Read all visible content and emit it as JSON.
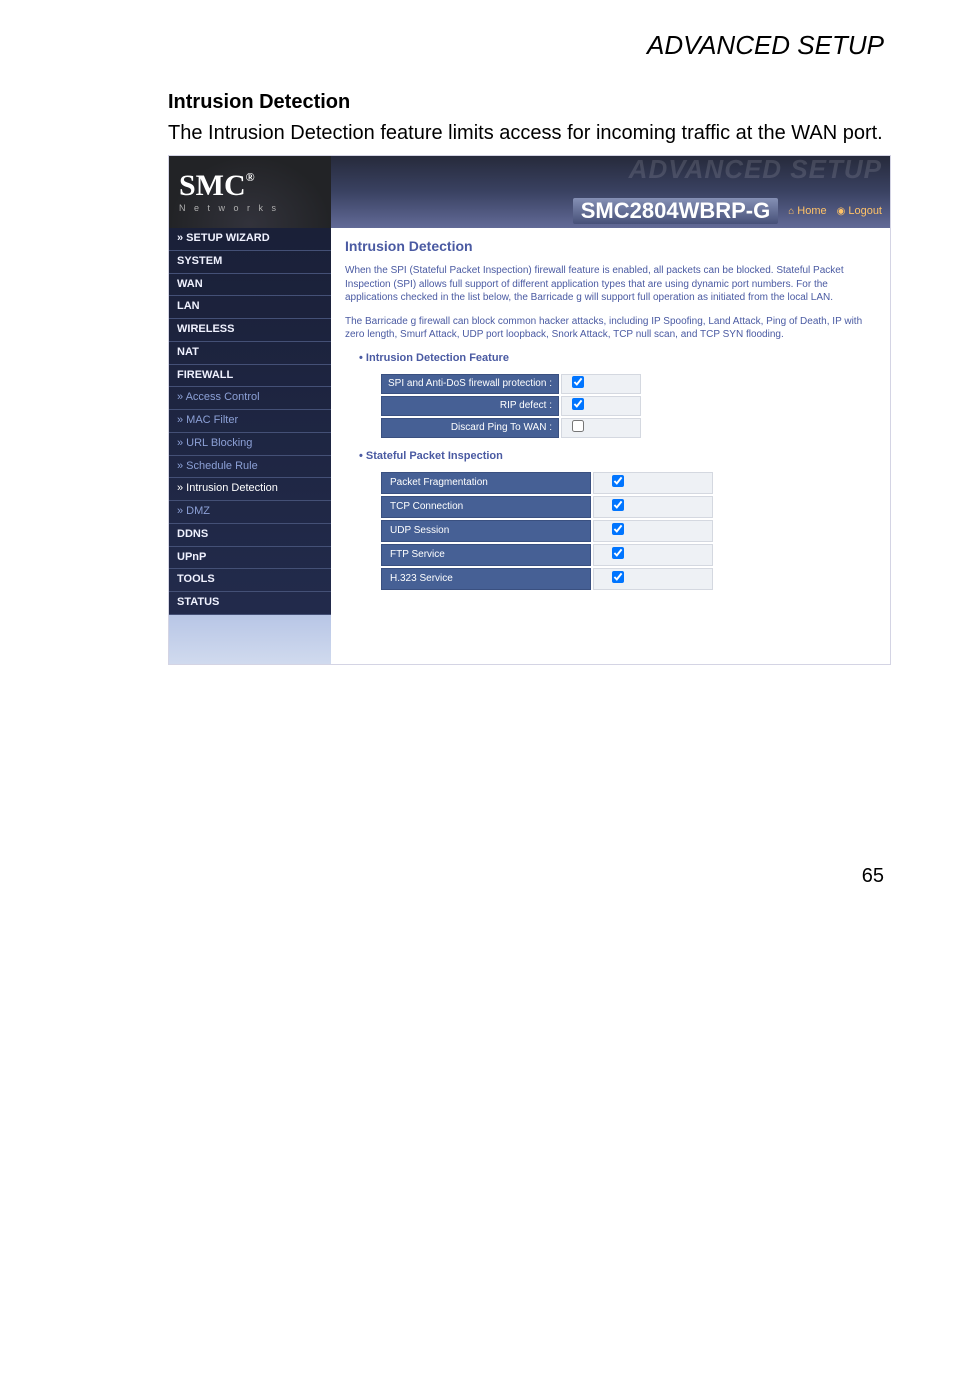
{
  "page": {
    "header": "ADVANCED SETUP",
    "section_title": "Intrusion Detection",
    "section_desc": "The Intrusion Detection feature limits access for incoming traffic at the WAN port.",
    "page_number": "65"
  },
  "branding": {
    "brand": "SMC",
    "brand_sub": "N e t w o r k s",
    "ghost": "ADVANCED SETUP",
    "model": "SMC2804WBRP-G",
    "home_label": "Home",
    "logout_label": "Logout"
  },
  "sidebar": {
    "items": [
      {
        "label": "» SETUP WIZARD",
        "type": "main"
      },
      {
        "label": "SYSTEM",
        "type": "main"
      },
      {
        "label": "WAN",
        "type": "main"
      },
      {
        "label": "LAN",
        "type": "main"
      },
      {
        "label": "WIRELESS",
        "type": "main"
      },
      {
        "label": "NAT",
        "type": "main"
      },
      {
        "label": "FIREWALL",
        "type": "main"
      },
      {
        "label": "» Access Control",
        "type": "sub"
      },
      {
        "label": "» MAC Filter",
        "type": "sub"
      },
      {
        "label": "» URL Blocking",
        "type": "sub"
      },
      {
        "label": "» Schedule Rule",
        "type": "sub"
      },
      {
        "label": "» Intrusion Detection",
        "type": "sub",
        "active": true
      },
      {
        "label": "» DMZ",
        "type": "sub"
      },
      {
        "label": "DDNS",
        "type": "main"
      },
      {
        "label": "UPnP",
        "type": "main"
      },
      {
        "label": "TOOLS",
        "type": "main"
      },
      {
        "label": "STATUS",
        "type": "main"
      }
    ]
  },
  "content": {
    "title": "Intrusion Detection",
    "para1": "When the SPI (Stateful Packet Inspection) firewall feature is enabled, all packets can be blocked.  Stateful Packet Inspection (SPI) allows full support of different application types that are using dynamic port numbers.  For the applications checked in the list below, the Barricade g will support full operation as initiated from the local LAN.",
    "para2": "The Barricade g firewall can block common hacker attacks, including IP Spoofing, Land Attack, Ping of Death, IP with zero length, Smurf Attack, UDP port loopback, Snork Attack, TCP null scan, and TCP SYN flooding.",
    "bullet1": "Intrusion Detection Feature",
    "feature_rows": [
      {
        "label": "SPI and Anti-DoS firewall protection :",
        "checked": true
      },
      {
        "label": "RIP defect :",
        "checked": true
      },
      {
        "label": "Discard Ping To WAN :",
        "checked": false
      }
    ],
    "bullet2": "Stateful Packet Inspection",
    "spi_rows": [
      {
        "label": "Packet Fragmentation",
        "checked": true
      },
      {
        "label": "TCP Connection",
        "checked": true
      },
      {
        "label": "UDP Session",
        "checked": true
      },
      {
        "label": "FTP Service",
        "checked": true
      },
      {
        "label": "H.323 Service",
        "checked": true
      }
    ]
  },
  "colors": {
    "sidebar_bg": "#1f2844",
    "label_bg": "#466095",
    "heading": "#4a5aa2",
    "nav_link": "#ffc267"
  }
}
